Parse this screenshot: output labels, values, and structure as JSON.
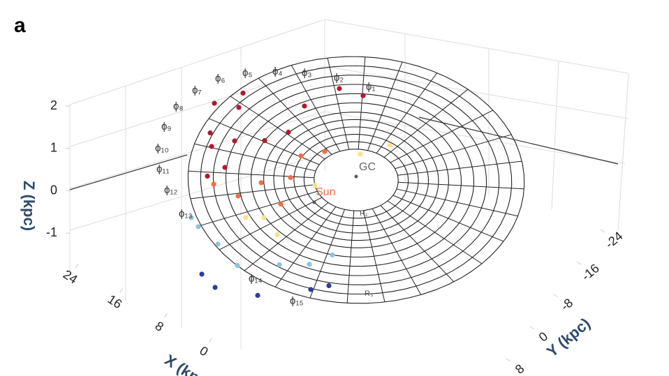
{
  "panel_label": "a",
  "chart_data": {
    "type": "scatter3d",
    "xlabel": "X (kpc)",
    "ylabel": "Y (kpc)",
    "zlabel": "Z (kpc)",
    "xlim": [
      -8,
      24
    ],
    "xticks": [
      0,
      8,
      16,
      24
    ],
    "ylim": [
      -24,
      8
    ],
    "yticks": [
      -24,
      -16,
      -8,
      0,
      8
    ],
    "zlim": [
      -2,
      2
    ],
    "zticks": [
      -1,
      0,
      1,
      2
    ],
    "series": [
      {
        "color": "#b2182b",
        "x": [
          16,
          18,
          14,
          15,
          12,
          19,
          10,
          8,
          13,
          11,
          9,
          17,
          6
        ],
        "y": [
          3,
          0,
          6,
          9,
          10,
          4,
          -2,
          -6,
          12,
          4,
          2,
          7,
          -8
        ],
        "z": [
          0.5,
          0.3,
          0.2,
          0.3,
          0.2,
          0.4,
          0.6,
          0.8,
          0.1,
          0.3,
          0.5,
          0.2,
          0.6
        ]
      },
      {
        "color": "#f46d43",
        "x": [
          7,
          6,
          8,
          12,
          5,
          4,
          9
        ],
        "y": [
          2,
          5,
          8,
          12,
          0,
          9,
          11
        ],
        "z": [
          0.1,
          0,
          0,
          0,
          0.2,
          0,
          -0.1
        ]
      },
      {
        "color": "#fee08b",
        "x": [
          3,
          2,
          4,
          1,
          6,
          0
        ],
        "y": [
          4,
          -3,
          12,
          13,
          13,
          -6
        ],
        "z": [
          0,
          0.1,
          0,
          0,
          -0.1,
          0.2
        ]
      },
      {
        "color": "#8ec3de",
        "x": [
          10,
          6,
          2,
          -2,
          -5,
          -6,
          12
        ],
        "y": [
          17,
          18,
          19,
          16,
          14,
          11,
          16
        ],
        "z": [
          -0.3,
          -0.2,
          -0.2,
          -0.1,
          0,
          0,
          -0.4
        ]
      },
      {
        "color": "#2c3d98",
        "x": [
          2,
          -3,
          -7,
          -9,
          5
        ],
        "y": [
          23,
          21,
          16,
          15,
          22
        ],
        "z": [
          -0.3,
          -0.2,
          -0.2,
          0,
          -0.4
        ]
      }
    ],
    "annotations": {
      "gc": "GC",
      "sun": "Sun",
      "r_inner": "R₁",
      "r_outer": "R₅"
    },
    "phi_labels": [
      "ϕ₁",
      "ϕ₂",
      "ϕ₃",
      "ϕ₄",
      "ϕ₅",
      "ϕ₆",
      "ϕ₇",
      "ϕ₈",
      "ϕ₉",
      "ϕ₁₀",
      "ϕ₁₁",
      "ϕ₁₂",
      "ϕ₁₃",
      "ϕ₁₄",
      "ϕ₁₅"
    ]
  }
}
